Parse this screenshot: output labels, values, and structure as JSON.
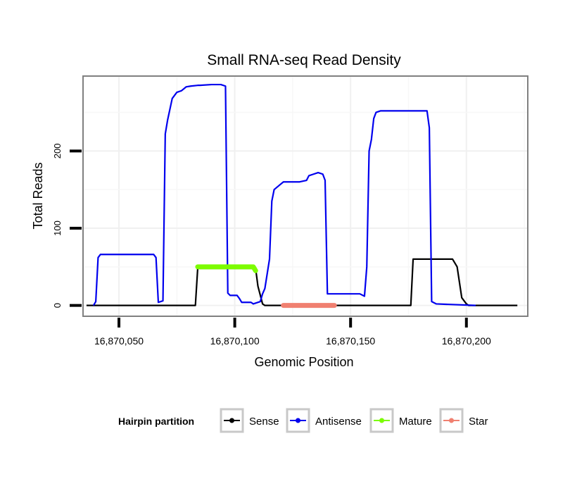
{
  "chart_data": {
    "type": "line",
    "title": "Small RNA-seq Read Density",
    "xlabel": "Genomic Position",
    "ylabel": "Total Reads",
    "xlim": [
      16870034.5,
      16870226.5
    ],
    "ylim": [
      -14,
      297
    ],
    "x_ticks": [
      16870050,
      16870100,
      16870150,
      16870200
    ],
    "x_tick_labels": [
      "16,870,050",
      "16,870,100",
      "16,870,150",
      "16,870,200"
    ],
    "y_ticks": [
      0,
      100,
      200
    ],
    "y_tick_labels": [
      "0",
      "100",
      "200"
    ],
    "grid": true,
    "legend_position": "bottom",
    "legend_title": "Hairpin partition",
    "series": [
      {
        "name": "Sense",
        "color": "#000000",
        "points": [
          [
            16870036,
            0
          ],
          [
            16870083,
            0
          ],
          [
            16870084,
            48
          ],
          [
            16870109,
            48
          ],
          [
            16870110,
            25
          ],
          [
            16870112,
            2
          ],
          [
            16870113,
            0
          ],
          [
            16870176,
            0
          ],
          [
            16870177,
            60
          ],
          [
            16870194,
            60
          ],
          [
            16870196,
            50
          ],
          [
            16870198,
            10
          ],
          [
            16870200,
            2
          ],
          [
            16870201,
            0
          ],
          [
            16870222,
            0
          ]
        ]
      },
      {
        "name": "Antisense",
        "color": "#0000ee",
        "points": [
          [
            16870039,
            0
          ],
          [
            16870040,
            5
          ],
          [
            16870041,
            62
          ],
          [
            16870042,
            66
          ],
          [
            16870056,
            66
          ],
          [
            16870065,
            66
          ],
          [
            16870066,
            62
          ],
          [
            16870067,
            4
          ],
          [
            16870069,
            6
          ],
          [
            16870070,
            222
          ],
          [
            16870071,
            240
          ],
          [
            16870073,
            268
          ],
          [
            16870075,
            276
          ],
          [
            16870077,
            278
          ],
          [
            16870079,
            283
          ],
          [
            16870081,
            284
          ],
          [
            16870084,
            285
          ],
          [
            16870085,
            285
          ],
          [
            16870090,
            286
          ],
          [
            16870094,
            286
          ],
          [
            16870096,
            284
          ],
          [
            16870097,
            16
          ],
          [
            16870098,
            13
          ],
          [
            16870101,
            13
          ],
          [
            16870102,
            9
          ],
          [
            16870103,
            4
          ],
          [
            16870107,
            4
          ],
          [
            16870108,
            2
          ],
          [
            16870111,
            5
          ],
          [
            16870112,
            15
          ],
          [
            16870113,
            22
          ],
          [
            16870115,
            60
          ],
          [
            16870116,
            135
          ],
          [
            16870117,
            150
          ],
          [
            16870119,
            155
          ],
          [
            16870121,
            160
          ],
          [
            16870128,
            160
          ],
          [
            16870131,
            162
          ],
          [
            16870132,
            168
          ],
          [
            16870134,
            170
          ],
          [
            16870136,
            172
          ],
          [
            16870138,
            170
          ],
          [
            16870139,
            162
          ],
          [
            16870140,
            15
          ],
          [
            16870154,
            15
          ],
          [
            16870156,
            12
          ],
          [
            16870157,
            50
          ],
          [
            16870158,
            200
          ],
          [
            16870159,
            215
          ],
          [
            16870160,
            242
          ],
          [
            16870161,
            250
          ],
          [
            16870163,
            252
          ],
          [
            16870183,
            252
          ],
          [
            16870184,
            230
          ],
          [
            16870185,
            5
          ],
          [
            16870187,
            2
          ],
          [
            16870204,
            0
          ]
        ]
      },
      {
        "name": "Mature",
        "color": "#7cfc00",
        "points": [
          [
            16870084,
            50
          ],
          [
            16870108,
            50
          ],
          [
            16870109,
            45
          ]
        ]
      },
      {
        "name": "Star",
        "color": "#f08070",
        "points": [
          [
            16870121,
            0
          ],
          [
            16870143,
            0
          ]
        ]
      }
    ]
  }
}
